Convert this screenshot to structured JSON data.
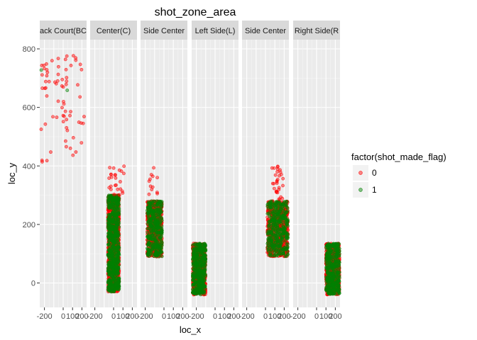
{
  "chart_data": {
    "type": "scatter",
    "title": "shot_zone_area",
    "xlabel": "loc_x",
    "ylabel": "loc_y",
    "xlim": [
      -250,
      250
    ],
    "ylim": [
      -90,
      840
    ],
    "x_ticks": [
      -200,
      0,
      100,
      200
    ],
    "x_tick_labels": [
      "-200",
      "0",
      "100",
      "200"
    ],
    "y_ticks": [
      0,
      200,
      400,
      600,
      800
    ],
    "y_tick_labels": [
      "0",
      "200",
      "400",
      "600",
      "800"
    ],
    "grid": true,
    "legend": {
      "title": "factor(shot_made_flag)",
      "position": "right",
      "entries": [
        {
          "label": "0",
          "color": "#ff0000"
        },
        {
          "label": "1",
          "color": "#008000"
        }
      ]
    },
    "facets": [
      {
        "label": "ack Court(BC",
        "regions": [
          {
            "x_range": [
              -245,
              230
            ],
            "y_range": [
              400,
              790
            ],
            "miss_points": 70,
            "made_points": 2
          }
        ]
      },
      {
        "label": "Center(C)",
        "regions": [
          {
            "x_range": [
              -60,
              60
            ],
            "y_range": [
              -30,
              300
            ],
            "miss_points": 1100,
            "made_points": 700
          },
          {
            "x_range": [
              -55,
              115
            ],
            "y_range": [
              300,
              400
            ],
            "miss_points": 25,
            "made_points": 0
          }
        ]
      },
      {
        "label": "Side Center",
        "regions": [
          {
            "x_range": [
              -180,
              -20
            ],
            "y_range": [
              90,
              280
            ],
            "miss_points": 650,
            "made_points": 380
          },
          {
            "x_range": [
              -180,
              -70
            ],
            "y_range": [
              300,
              400
            ],
            "miss_points": 12,
            "made_points": 0
          }
        ]
      },
      {
        "label": "Left Side(L)",
        "regions": [
          {
            "x_range": [
              -240,
              -100
            ],
            "y_range": [
              -40,
              135
            ],
            "miss_points": 650,
            "made_points": 420
          }
        ]
      },
      {
        "label": "Side Center",
        "regions": [
          {
            "x_range": [
              20,
              240
            ],
            "y_range": [
              90,
              280
            ],
            "miss_points": 650,
            "made_points": 380
          },
          {
            "x_range": [
              70,
              190
            ],
            "y_range": [
              280,
              400
            ],
            "miss_points": 30,
            "made_points": 0
          }
        ]
      },
      {
        "label": "Right Side(R",
        "regions": [
          {
            "x_range": [
              100,
              245
            ],
            "y_range": [
              -40,
              135
            ],
            "miss_points": 650,
            "made_points": 420
          }
        ]
      }
    ]
  }
}
